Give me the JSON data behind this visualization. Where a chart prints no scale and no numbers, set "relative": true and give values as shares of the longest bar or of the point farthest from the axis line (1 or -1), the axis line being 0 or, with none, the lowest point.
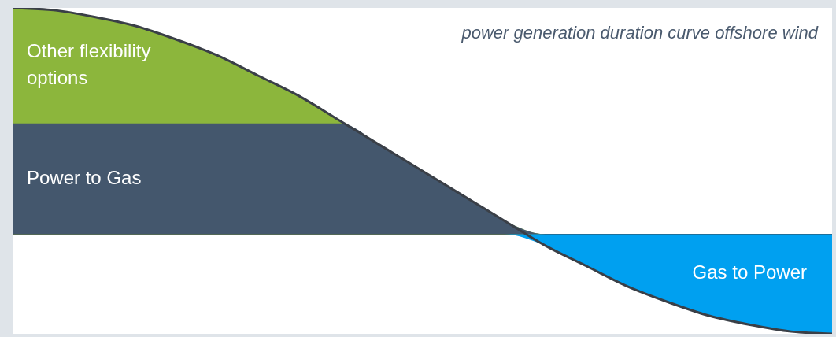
{
  "chart_data": {
    "type": "area",
    "relative": true,
    "title": "power generation duration curve offshore wind",
    "categories": [
      null,
      null,
      null,
      null,
      null,
      null,
      null,
      null,
      null,
      null,
      null,
      null,
      null,
      null,
      null,
      null,
      null,
      null,
      null,
      null,
      null
    ],
    "series": [
      {
        "name": "Other flexibility options",
        "color": "#8cb63c",
        "values": [
          1,
          0.99,
          0.96,
          0.92,
          0.86,
          0.79,
          0.7,
          0.61,
          0.5,
          0.39,
          0.28,
          0.17,
          0.06,
          0,
          0,
          0,
          0,
          0,
          0,
          0,
          0
        ]
      },
      {
        "name": "Power to Gas",
        "color": "#44576d",
        "values": [
          0.49,
          0.49,
          0.49,
          0.49,
          0.49,
          0.49,
          0.49,
          0.49,
          0.49,
          0.39,
          0.28,
          0.17,
          0.06,
          0,
          0,
          0,
          0,
          0,
          0,
          0,
          0
        ]
      },
      {
        "name": "Gas to Power",
        "color": "#00a0f0",
        "values": [
          0,
          0,
          0,
          0,
          0,
          0,
          0,
          0,
          0,
          0,
          0,
          0,
          0,
          -0.05,
          -0.14,
          -0.23,
          -0.3,
          -0.36,
          -0.4,
          -0.43,
          -0.44
        ]
      },
      {
        "type": "line",
        "color": "#3a3f47",
        "values": [
          1,
          0.99,
          0.96,
          0.92,
          0.86,
          0.79,
          0.7,
          0.61,
          0.5,
          0.39,
          0.28,
          0.17,
          0.06,
          -0.05,
          -0.14,
          -0.23,
          -0.3,
          -0.36,
          -0.4,
          -0.43,
          -0.44
        ]
      }
    ],
    "legend": false
  }
}
